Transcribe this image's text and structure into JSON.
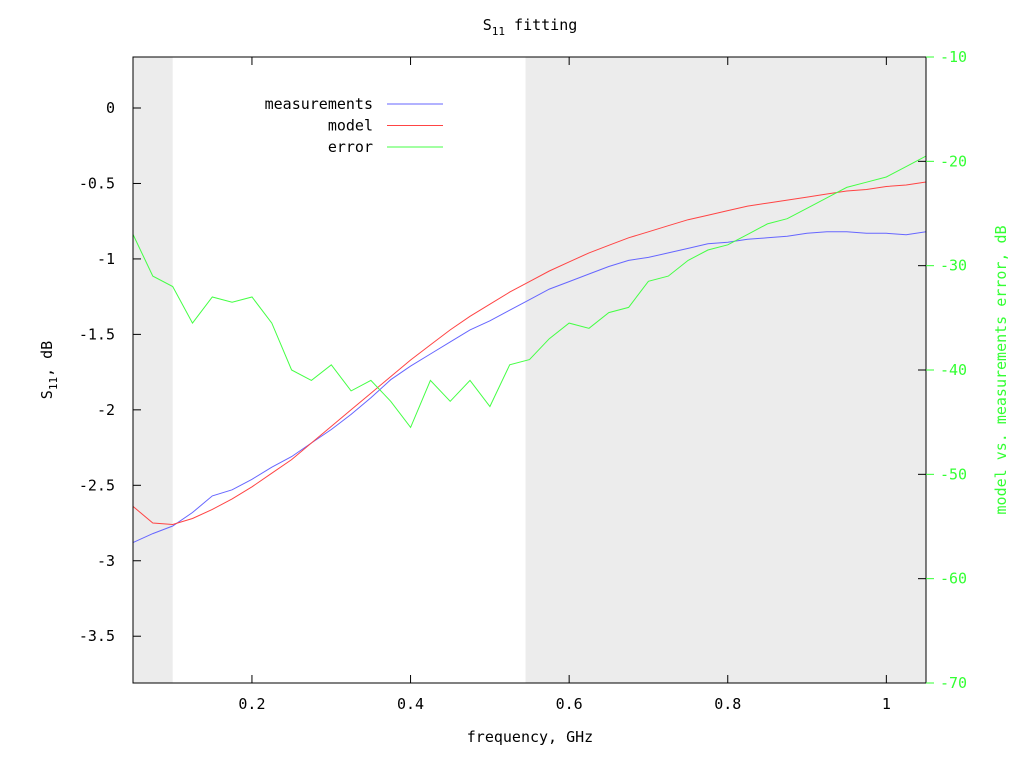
{
  "chart_data": {
    "type": "line",
    "title": "S",
    "title_sub": "11",
    "title_rest": " fitting",
    "xlabel": "frequency, GHz",
    "ylabel": "S",
    "ylabel_sub": "11",
    "ylabel_rest": ", dB",
    "y2label": "model vs. measurements error, dB",
    "xlim": [
      0.05,
      1.05
    ],
    "ylim": [
      -3.81,
      0.338
    ],
    "y2lim": [
      -70,
      -10
    ],
    "xticks": [
      0.2,
      0.4,
      0.6,
      0.8,
      1
    ],
    "xtick_labels": [
      "0.2",
      "0.4",
      "0.6",
      "0.8",
      "1"
    ],
    "yticks": [
      0,
      -0.5,
      -1,
      -1.5,
      -2,
      -2.5,
      -3,
      -3.5
    ],
    "ytick_labels": [
      "0",
      "-0.5",
      "-1",
      "-1.5",
      "-2",
      "-2.5",
      "-3",
      "-3.5"
    ],
    "y2ticks": [
      -10,
      -20,
      -30,
      -40,
      -50,
      -60,
      -70
    ],
    "y2tick_labels": [
      "-10",
      "-20",
      "-30",
      "-40",
      "-50",
      "-60",
      "-70"
    ],
    "shaded_ranges": [
      [
        0.05,
        0.1
      ],
      [
        0.545,
        1.05
      ]
    ],
    "legend_position": "top-left",
    "x": [
      0.05,
      0.075,
      0.1,
      0.125,
      0.15,
      0.175,
      0.2,
      0.225,
      0.25,
      0.275,
      0.3,
      0.325,
      0.35,
      0.375,
      0.4,
      0.425,
      0.45,
      0.475,
      0.5,
      0.525,
      0.55,
      0.575,
      0.6,
      0.625,
      0.65,
      0.675,
      0.7,
      0.725,
      0.75,
      0.775,
      0.8,
      0.825,
      0.85,
      0.875,
      0.9,
      0.925,
      0.95,
      0.975,
      1.0,
      1.025,
      1.05
    ],
    "series": [
      {
        "name": "measurements",
        "axis": "y",
        "color": "#6666ff",
        "values": [
          -2.88,
          -2.82,
          -2.77,
          -2.68,
          -2.57,
          -2.53,
          -2.46,
          -2.38,
          -2.31,
          -2.22,
          -2.13,
          -2.03,
          -1.92,
          -1.8,
          -1.71,
          -1.63,
          -1.55,
          -1.47,
          -1.41,
          -1.34,
          -1.27,
          -1.2,
          -1.15,
          -1.1,
          -1.05,
          -1.01,
          -0.99,
          -0.96,
          -0.93,
          -0.9,
          -0.89,
          -0.87,
          -0.86,
          -0.85,
          -0.83,
          -0.82,
          -0.82,
          -0.83,
          -0.83,
          -0.84,
          -0.82
        ]
      },
      {
        "name": "model",
        "axis": "y",
        "color": "#ff4444",
        "values": [
          -2.64,
          -2.75,
          -2.76,
          -2.72,
          -2.66,
          -2.59,
          -2.51,
          -2.42,
          -2.33,
          -2.22,
          -2.11,
          -2.0,
          -1.89,
          -1.78,
          -1.67,
          -1.57,
          -1.47,
          -1.38,
          -1.3,
          -1.22,
          -1.15,
          -1.08,
          -1.02,
          -0.96,
          -0.91,
          -0.86,
          -0.82,
          -0.78,
          -0.74,
          -0.71,
          -0.68,
          -0.65,
          -0.63,
          -0.61,
          -0.59,
          -0.57,
          -0.55,
          -0.54,
          -0.52,
          -0.51,
          -0.49
        ]
      },
      {
        "name": "error",
        "axis": "y2",
        "color": "#44ff44",
        "values": [
          -27,
          -31,
          -32,
          -35.5,
          -33,
          -33.5,
          -33,
          -35.5,
          -40,
          -41,
          -39.5,
          -42,
          -41,
          -43,
          -45.5,
          -41,
          -43,
          -41,
          -43.5,
          -39.5,
          -39,
          -37,
          -35.5,
          -36,
          -34.5,
          -34,
          -31.5,
          -31,
          -29.5,
          -28.5,
          -28,
          -27,
          -26,
          -25.5,
          -24.5,
          -23.5,
          -22.5,
          -22,
          -21.5,
          -20.5,
          -19.5
        ]
      }
    ]
  }
}
